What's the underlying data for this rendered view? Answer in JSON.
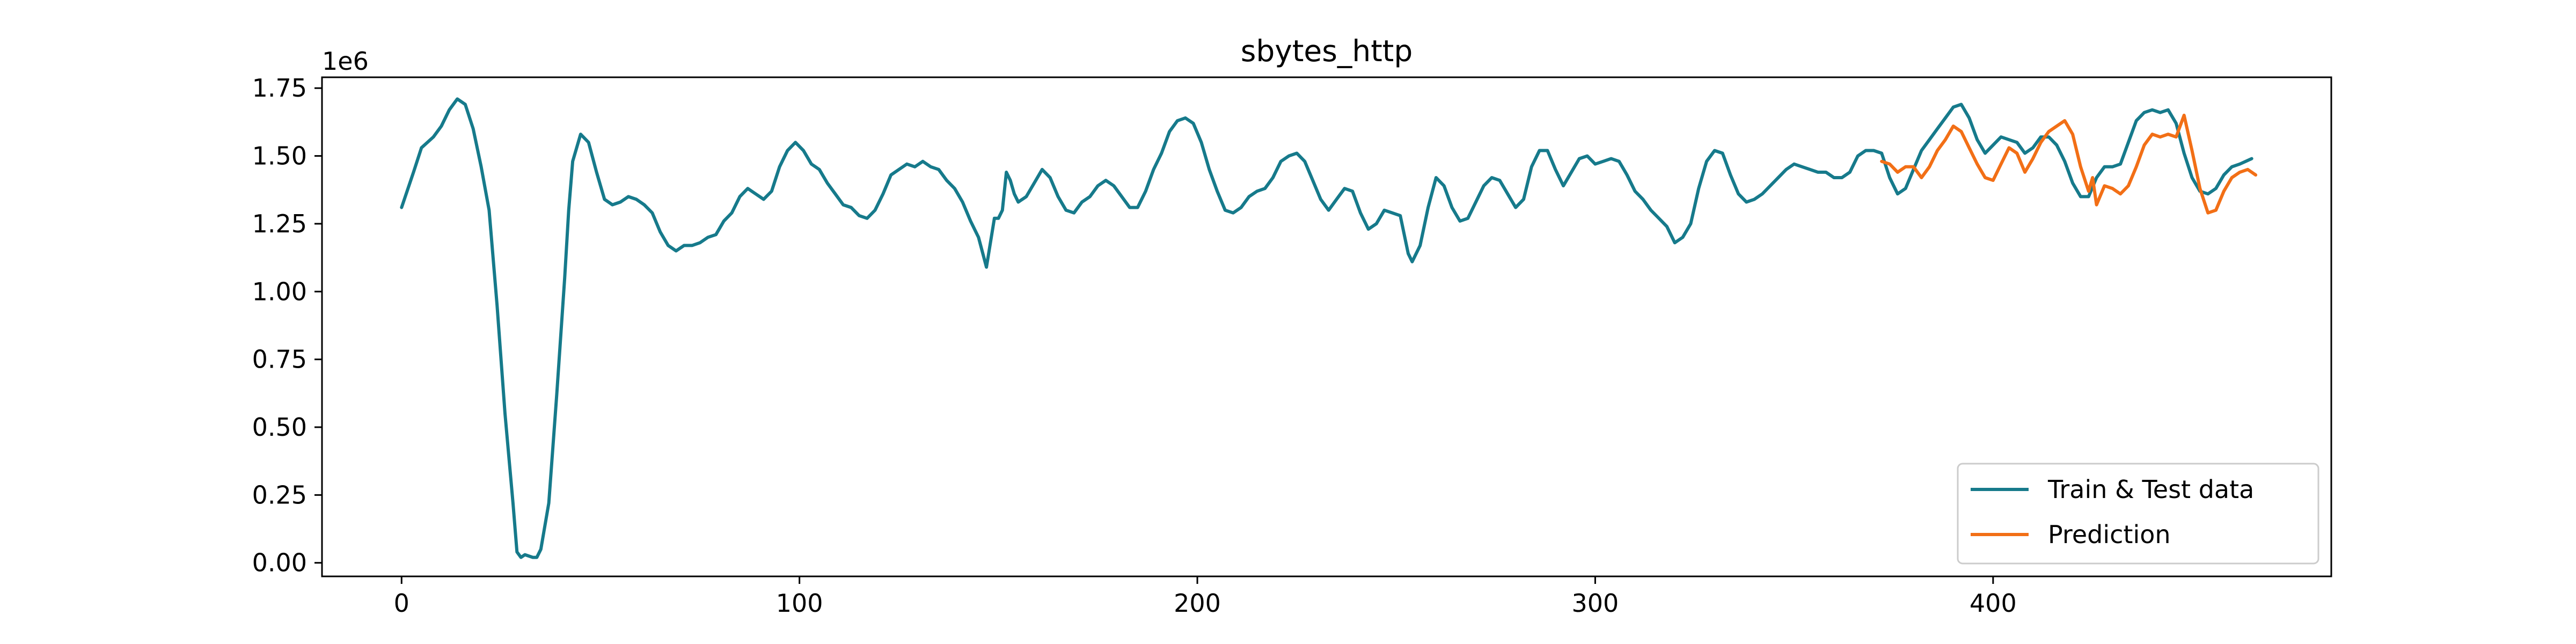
{
  "chart_data": {
    "type": "line",
    "title": "sbytes_http",
    "xlabel": "",
    "ylabel": "",
    "y_offset_label": "1e6",
    "xlim": [
      -20,
      485
    ],
    "ylim": [
      -0.05,
      1.79
    ],
    "x_ticks": [
      0,
      100,
      200,
      300,
      400
    ],
    "y_ticks": [
      0.0,
      0.25,
      0.5,
      0.75,
      1.0,
      1.25,
      1.5,
      1.75
    ],
    "x_tick_labels": [
      "0",
      "100",
      "200",
      "300",
      "400"
    ],
    "y_tick_labels": [
      "0.00",
      "0.25",
      "0.50",
      "0.75",
      "1.00",
      "1.25",
      "1.50",
      "1.75"
    ],
    "legend_position": "lower-right",
    "grid": false,
    "series": [
      {
        "name": "Train & Test data",
        "color": "#167a8b",
        "points": [
          [
            0,
            1.31
          ],
          [
            3,
            1.44
          ],
          [
            5,
            1.53
          ],
          [
            8,
            1.57
          ],
          [
            10,
            1.61
          ],
          [
            12,
            1.67
          ],
          [
            14,
            1.71
          ],
          [
            16,
            1.69
          ],
          [
            18,
            1.6
          ],
          [
            20,
            1.46
          ],
          [
            22,
            1.3
          ],
          [
            24,
            0.95
          ],
          [
            26,
            0.55
          ],
          [
            28,
            0.22
          ],
          [
            29,
            0.04
          ],
          [
            30,
            0.02
          ],
          [
            31,
            0.03
          ],
          [
            33,
            0.02
          ],
          [
            34,
            0.02
          ],
          [
            35,
            0.05
          ],
          [
            37,
            0.22
          ],
          [
            39,
            0.62
          ],
          [
            41,
            1.05
          ],
          [
            42,
            1.3
          ],
          [
            43,
            1.48
          ],
          [
            45,
            1.58
          ],
          [
            47,
            1.55
          ],
          [
            49,
            1.44
          ],
          [
            51,
            1.34
          ],
          [
            53,
            1.32
          ],
          [
            55,
            1.33
          ],
          [
            57,
            1.35
          ],
          [
            59,
            1.34
          ],
          [
            61,
            1.32
          ],
          [
            63,
            1.29
          ],
          [
            65,
            1.22
          ],
          [
            67,
            1.17
          ],
          [
            69,
            1.15
          ],
          [
            71,
            1.17
          ],
          [
            73,
            1.17
          ],
          [
            75,
            1.18
          ],
          [
            77,
            1.2
          ],
          [
            79,
            1.21
          ],
          [
            81,
            1.26
          ],
          [
            83,
            1.29
          ],
          [
            85,
            1.35
          ],
          [
            87,
            1.38
          ],
          [
            89,
            1.36
          ],
          [
            91,
            1.34
          ],
          [
            93,
            1.37
          ],
          [
            95,
            1.46
          ],
          [
            97,
            1.52
          ],
          [
            99,
            1.55
          ],
          [
            101,
            1.52
          ],
          [
            103,
            1.47
          ],
          [
            105,
            1.45
          ],
          [
            107,
            1.4
          ],
          [
            109,
            1.36
          ],
          [
            111,
            1.32
          ],
          [
            113,
            1.31
          ],
          [
            115,
            1.28
          ],
          [
            117,
            1.27
          ],
          [
            119,
            1.3
          ],
          [
            121,
            1.36
          ],
          [
            123,
            1.43
          ],
          [
            125,
            1.45
          ],
          [
            127,
            1.47
          ],
          [
            129,
            1.46
          ],
          [
            131,
            1.48
          ],
          [
            133,
            1.46
          ],
          [
            135,
            1.45
          ],
          [
            137,
            1.41
          ],
          [
            139,
            1.38
          ],
          [
            141,
            1.33
          ],
          [
            143,
            1.26
          ],
          [
            145,
            1.2
          ],
          [
            147,
            1.09
          ],
          [
            148,
            1.18
          ],
          [
            149,
            1.27
          ],
          [
            150,
            1.27
          ],
          [
            151,
            1.3
          ],
          [
            152,
            1.44
          ],
          [
            153,
            1.41
          ],
          [
            154,
            1.36
          ],
          [
            155,
            1.33
          ],
          [
            157,
            1.35
          ],
          [
            159,
            1.4
          ],
          [
            161,
            1.45
          ],
          [
            163,
            1.42
          ],
          [
            165,
            1.35
          ],
          [
            167,
            1.3
          ],
          [
            169,
            1.29
          ],
          [
            171,
            1.33
          ],
          [
            173,
            1.35
          ],
          [
            175,
            1.39
          ],
          [
            177,
            1.41
          ],
          [
            179,
            1.39
          ],
          [
            181,
            1.35
          ],
          [
            183,
            1.31
          ],
          [
            185,
            1.31
          ],
          [
            187,
            1.37
          ],
          [
            189,
            1.45
          ],
          [
            191,
            1.51
          ],
          [
            193,
            1.59
          ],
          [
            195,
            1.63
          ],
          [
            197,
            1.64
          ],
          [
            199,
            1.62
          ],
          [
            201,
            1.55
          ],
          [
            203,
            1.45
          ],
          [
            205,
            1.37
          ],
          [
            207,
            1.3
          ],
          [
            209,
            1.29
          ],
          [
            211,
            1.31
          ],
          [
            213,
            1.35
          ],
          [
            215,
            1.37
          ],
          [
            217,
            1.38
          ],
          [
            219,
            1.42
          ],
          [
            221,
            1.48
          ],
          [
            223,
            1.5
          ],
          [
            225,
            1.51
          ],
          [
            227,
            1.48
          ],
          [
            229,
            1.41
          ],
          [
            231,
            1.34
          ],
          [
            233,
            1.3
          ],
          [
            235,
            1.34
          ],
          [
            237,
            1.38
          ],
          [
            239,
            1.37
          ],
          [
            241,
            1.29
          ],
          [
            243,
            1.23
          ],
          [
            245,
            1.25
          ],
          [
            247,
            1.3
          ],
          [
            249,
            1.29
          ],
          [
            251,
            1.28
          ],
          [
            253,
            1.14
          ],
          [
            254,
            1.11
          ],
          [
            256,
            1.17
          ],
          [
            258,
            1.31
          ],
          [
            260,
            1.42
          ],
          [
            262,
            1.39
          ],
          [
            264,
            1.31
          ],
          [
            266,
            1.26
          ],
          [
            268,
            1.27
          ],
          [
            270,
            1.33
          ],
          [
            272,
            1.39
          ],
          [
            274,
            1.42
          ],
          [
            276,
            1.41
          ],
          [
            278,
            1.36
          ],
          [
            280,
            1.31
          ],
          [
            282,
            1.34
          ],
          [
            284,
            1.46
          ],
          [
            286,
            1.52
          ],
          [
            288,
            1.52
          ],
          [
            290,
            1.45
          ],
          [
            292,
            1.39
          ],
          [
            294,
            1.44
          ],
          [
            296,
            1.49
          ],
          [
            298,
            1.5
          ],
          [
            300,
            1.47
          ],
          [
            302,
            1.48
          ],
          [
            304,
            1.49
          ],
          [
            306,
            1.48
          ],
          [
            308,
            1.43
          ],
          [
            310,
            1.37
          ],
          [
            312,
            1.34
          ],
          [
            314,
            1.3
          ],
          [
            316,
            1.27
          ],
          [
            318,
            1.24
          ],
          [
            320,
            1.18
          ],
          [
            322,
            1.2
          ],
          [
            324,
            1.25
          ],
          [
            326,
            1.38
          ],
          [
            328,
            1.48
          ],
          [
            330,
            1.52
          ],
          [
            332,
            1.51
          ],
          [
            334,
            1.43
          ],
          [
            336,
            1.36
          ],
          [
            338,
            1.33
          ],
          [
            340,
            1.34
          ],
          [
            342,
            1.36
          ],
          [
            344,
            1.39
          ],
          [
            346,
            1.42
          ],
          [
            348,
            1.45
          ],
          [
            350,
            1.47
          ],
          [
            352,
            1.46
          ],
          [
            354,
            1.45
          ],
          [
            356,
            1.44
          ],
          [
            358,
            1.44
          ],
          [
            360,
            1.42
          ],
          [
            362,
            1.42
          ],
          [
            364,
            1.44
          ],
          [
            366,
            1.5
          ],
          [
            368,
            1.52
          ],
          [
            370,
            1.52
          ],
          [
            372,
            1.51
          ],
          [
            374,
            1.42
          ],
          [
            376,
            1.36
          ],
          [
            378,
            1.38
          ],
          [
            380,
            1.45
          ],
          [
            382,
            1.52
          ],
          [
            384,
            1.56
          ],
          [
            386,
            1.6
          ],
          [
            388,
            1.64
          ],
          [
            390,
            1.68
          ],
          [
            392,
            1.69
          ],
          [
            394,
            1.64
          ],
          [
            396,
            1.56
          ],
          [
            398,
            1.51
          ],
          [
            400,
            1.54
          ],
          [
            402,
            1.57
          ],
          [
            404,
            1.56
          ],
          [
            406,
            1.55
          ],
          [
            408,
            1.51
          ],
          [
            410,
            1.53
          ],
          [
            412,
            1.57
          ],
          [
            414,
            1.57
          ],
          [
            416,
            1.54
          ],
          [
            418,
            1.48
          ],
          [
            420,
            1.4
          ],
          [
            422,
            1.35
          ],
          [
            424,
            1.35
          ],
          [
            426,
            1.42
          ],
          [
            428,
            1.46
          ],
          [
            430,
            1.46
          ],
          [
            432,
            1.47
          ],
          [
            434,
            1.55
          ],
          [
            436,
            1.63
          ],
          [
            438,
            1.66
          ],
          [
            440,
            1.67
          ],
          [
            442,
            1.66
          ],
          [
            444,
            1.67
          ],
          [
            446,
            1.62
          ],
          [
            448,
            1.51
          ],
          [
            450,
            1.42
          ],
          [
            452,
            1.37
          ],
          [
            454,
            1.36
          ],
          [
            456,
            1.38
          ],
          [
            458,
            1.43
          ],
          [
            460,
            1.46
          ],
          [
            462,
            1.47
          ],
          [
            465,
            1.49
          ]
        ]
      },
      {
        "name": "Prediction",
        "color": "#f26f16",
        "points": [
          [
            372,
            1.48
          ],
          [
            374,
            1.47
          ],
          [
            376,
            1.44
          ],
          [
            378,
            1.46
          ],
          [
            380,
            1.46
          ],
          [
            382,
            1.42
          ],
          [
            384,
            1.46
          ],
          [
            386,
            1.52
          ],
          [
            388,
            1.56
          ],
          [
            390,
            1.61
          ],
          [
            392,
            1.59
          ],
          [
            394,
            1.53
          ],
          [
            396,
            1.47
          ],
          [
            398,
            1.42
          ],
          [
            400,
            1.41
          ],
          [
            402,
            1.47
          ],
          [
            404,
            1.53
          ],
          [
            406,
            1.51
          ],
          [
            408,
            1.44
          ],
          [
            410,
            1.49
          ],
          [
            412,
            1.55
          ],
          [
            414,
            1.59
          ],
          [
            416,
            1.61
          ],
          [
            418,
            1.63
          ],
          [
            420,
            1.58
          ],
          [
            422,
            1.46
          ],
          [
            424,
            1.37
          ],
          [
            425,
            1.42
          ],
          [
            426,
            1.32
          ],
          [
            428,
            1.39
          ],
          [
            430,
            1.38
          ],
          [
            432,
            1.36
          ],
          [
            434,
            1.39
          ],
          [
            436,
            1.46
          ],
          [
            438,
            1.54
          ],
          [
            440,
            1.58
          ],
          [
            442,
            1.57
          ],
          [
            444,
            1.58
          ],
          [
            446,
            1.57
          ],
          [
            448,
            1.65
          ],
          [
            450,
            1.52
          ],
          [
            452,
            1.38
          ],
          [
            454,
            1.29
          ],
          [
            456,
            1.3
          ],
          [
            458,
            1.37
          ],
          [
            460,
            1.42
          ],
          [
            462,
            1.44
          ],
          [
            464,
            1.45
          ],
          [
            466,
            1.43
          ]
        ]
      }
    ]
  }
}
